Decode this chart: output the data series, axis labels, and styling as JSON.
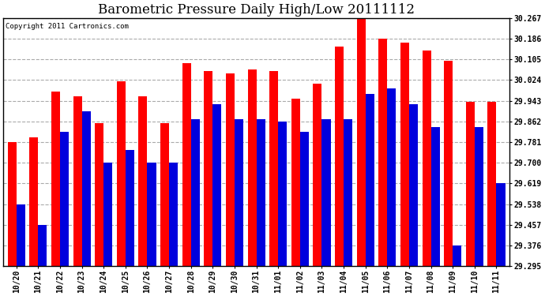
{
  "title": "Barometric Pressure Daily High/Low 20111112",
  "copyright": "Copyright 2011 Cartronics.com",
  "categories": [
    "10/20",
    "10/21",
    "10/22",
    "10/23",
    "10/24",
    "10/25",
    "10/26",
    "10/27",
    "10/28",
    "10/29",
    "10/30",
    "10/31",
    "11/01",
    "11/02",
    "11/03",
    "11/04",
    "11/05",
    "11/06",
    "11/07",
    "11/08",
    "11/09",
    "11/10",
    "11/11"
  ],
  "highs": [
    29.781,
    29.8,
    29.98,
    29.96,
    29.855,
    30.02,
    29.96,
    29.855,
    30.09,
    30.06,
    30.05,
    30.065,
    30.06,
    29.95,
    30.01,
    30.155,
    30.267,
    30.186,
    30.17,
    30.14,
    30.1,
    29.94,
    29.94
  ],
  "lows": [
    29.538,
    29.457,
    29.82,
    29.9,
    29.7,
    29.75,
    29.7,
    29.7,
    29.87,
    29.93,
    29.87,
    29.87,
    29.86,
    29.82,
    29.87,
    29.87,
    29.97,
    29.99,
    29.93,
    29.84,
    29.376,
    29.84,
    29.62
  ],
  "high_color": "#ff0000",
  "low_color": "#0000dd",
  "background_color": "#ffffff",
  "plot_bg_color": "#ffffff",
  "grid_color": "#aaaaaa",
  "ylim_min": 29.295,
  "ylim_max": 30.267,
  "yticks": [
    29.295,
    29.376,
    29.457,
    29.538,
    29.619,
    29.7,
    29.781,
    29.862,
    29.943,
    30.024,
    30.105,
    30.186,
    30.267
  ],
  "bar_width": 0.4,
  "title_fontsize": 12,
  "tick_fontsize": 7,
  "copyright_fontsize": 6.5
}
